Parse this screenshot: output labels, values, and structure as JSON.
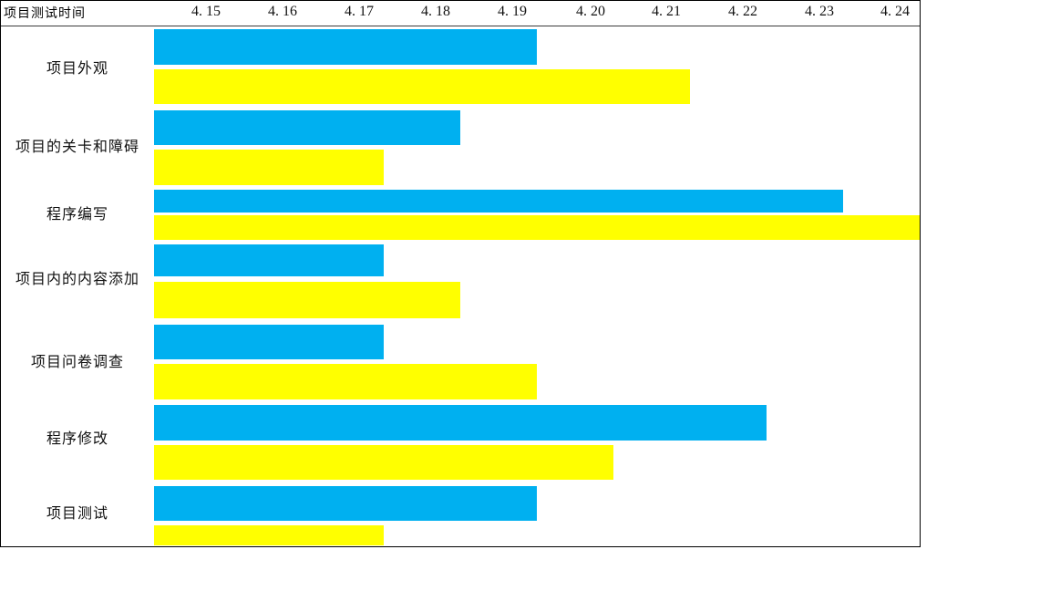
{
  "chart_data": {
    "type": "bar",
    "orientation": "horizontal",
    "title": "项目测试时间",
    "x_axis": {
      "tick_labels": [
        "4. 15",
        "4. 16",
        "4. 17",
        "4. 18",
        "4. 19",
        "4. 20",
        "4. 21",
        "4. 22",
        "4. 23",
        "4. 24"
      ],
      "tick_values": [
        4.15,
        4.16,
        4.17,
        4.18,
        4.19,
        4.2,
        4.21,
        4.22,
        4.23,
        4.24
      ],
      "min": 4.14,
      "max": 4.24,
      "interval_days": 1
    },
    "categories": [
      "项目外观",
      "项目的关卡和障碍",
      "程序编写",
      "项目内的内容添加",
      "项目问卷调查",
      "程序修改",
      "项目测试"
    ],
    "series": [
      {
        "name": "blue-bar-series",
        "color": "#00B0F0",
        "end_values": [
          4.19,
          4.18,
          4.23,
          4.17,
          4.17,
          4.22,
          4.19
        ],
        "duration_days": [
          5,
          4,
          9,
          3,
          3,
          8,
          5
        ]
      },
      {
        "name": "yellow-bar-series",
        "color": "#FFFF00",
        "end_values": [
          4.21,
          4.17,
          4.24,
          4.18,
          4.19,
          4.2,
          4.17
        ],
        "duration_days": [
          7,
          3,
          10,
          4,
          5,
          6,
          3
        ]
      }
    ],
    "start_value": 4.14,
    "grid": false,
    "legend": "none",
    "background": "#FFFFFF",
    "border_color": "#000000"
  }
}
